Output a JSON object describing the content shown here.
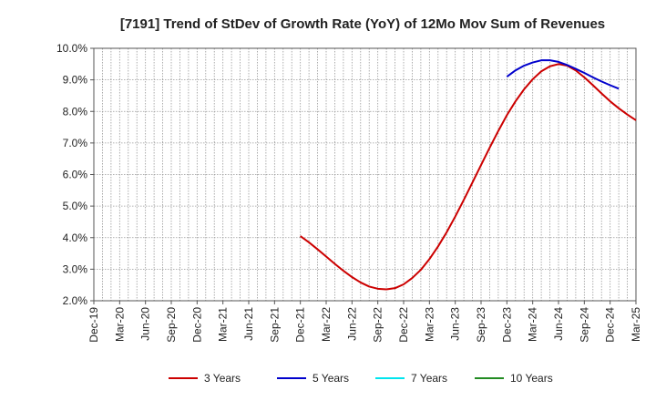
{
  "chart_data": {
    "type": "line",
    "title": "[7191]  Trend of StDev of Growth Rate (YoY) of 12Mo Mov Sum of Revenues",
    "xlabel": "",
    "ylabel": "",
    "x_tick_labels": [
      "Dec-19",
      "Mar-20",
      "Jun-20",
      "Sep-20",
      "Dec-20",
      "Mar-21",
      "Jun-21",
      "Sep-21",
      "Dec-21",
      "Mar-22",
      "Jun-22",
      "Sep-22",
      "Dec-22",
      "Mar-23",
      "Jun-23",
      "Sep-23",
      "Dec-23",
      "Mar-24",
      "Jun-24",
      "Sep-24",
      "Dec-24",
      "Mar-25"
    ],
    "y_tick_labels": [
      "2.0%",
      "3.0%",
      "4.0%",
      "5.0%",
      "6.0%",
      "7.0%",
      "8.0%",
      "9.0%",
      "10.0%"
    ],
    "ylim": [
      2.0,
      10.0
    ],
    "grid": true,
    "legend_position": "bottom",
    "series": [
      {
        "name": "3 Years",
        "color": "#cc0000",
        "start_index": 24,
        "values": [
          4.05,
          3.85,
          3.63,
          3.4,
          3.17,
          2.95,
          2.75,
          2.58,
          2.45,
          2.38,
          2.36,
          2.4,
          2.52,
          2.72,
          2.98,
          3.32,
          3.72,
          4.17,
          4.67,
          5.2,
          5.75,
          6.3,
          6.85,
          7.38,
          7.88,
          8.32,
          8.7,
          9.02,
          9.27,
          9.43,
          9.5,
          9.45,
          9.3,
          9.08,
          8.83,
          8.57,
          8.32,
          8.1,
          7.9,
          7.72
        ]
      },
      {
        "name": "5 Years",
        "color": "#0000cc",
        "start_index": 48,
        "values": [
          9.1,
          9.3,
          9.45,
          9.55,
          9.62,
          9.62,
          9.57,
          9.47,
          9.35,
          9.22,
          9.08,
          8.95,
          8.83,
          8.72
        ]
      },
      {
        "name": "7 Years",
        "color": "#00e5ee",
        "start_index": 0,
        "values": []
      },
      {
        "name": "10 Years",
        "color": "#228b22",
        "start_index": 0,
        "values": []
      }
    ]
  }
}
